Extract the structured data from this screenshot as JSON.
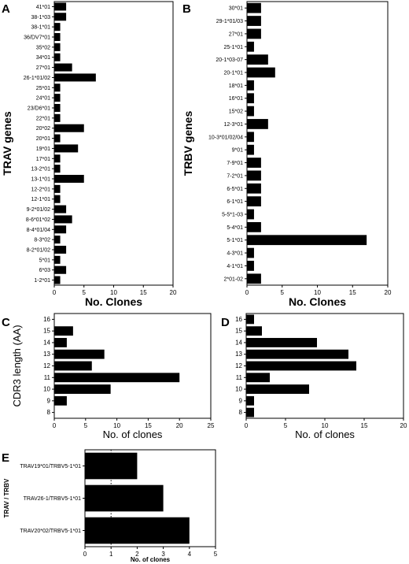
{
  "chart_data": [
    {
      "panel": "A",
      "type": "bar",
      "orientation": "horizontal",
      "xlabel": "No. Clones",
      "ylabel": "TRAV genes",
      "xlim": [
        0,
        20
      ],
      "xticks": [
        0,
        5,
        10,
        15,
        20
      ],
      "grid": false,
      "categories": [
        "41*01",
        "38-1*03",
        "38-1*01",
        "36/DV7*01",
        "35*02",
        "34*01",
        "27*01",
        "26-1*01/02",
        "25*01",
        "24*01",
        "23/D6*01",
        "22*01",
        "20*02",
        "20*01",
        "19*01",
        "17*01",
        "13-2*01",
        "13-1*01",
        "12-2*01",
        "12-1*01",
        "9-2*01/02",
        "8-6*01*02",
        "8-4*01/04",
        "8-3*02",
        "8-2*01/02",
        "5*01",
        "6*03",
        "1-2*01"
      ],
      "values": [
        2,
        2,
        1,
        1,
        1,
        1,
        3,
        7,
        1,
        1,
        1,
        1,
        5,
        1,
        4,
        1,
        1,
        5,
        1,
        1,
        2,
        3,
        2,
        1,
        2,
        1,
        2,
        1
      ]
    },
    {
      "panel": "B",
      "type": "bar",
      "orientation": "horizontal",
      "xlabel": "No. Clones",
      "ylabel": "TRBV genes",
      "xlim": [
        0,
        20
      ],
      "xticks": [
        0,
        5,
        10,
        15,
        20
      ],
      "grid": false,
      "categories": [
        "30*01",
        "29-1*01/03",
        "27*01",
        "25-1*01",
        "20-1*03-07",
        "20-1*01",
        "18*01",
        "16*01",
        "15*02",
        "12-3*01",
        "10-3*01/02/04",
        "9*01",
        "7-9*01",
        "7-2*01",
        "6-5*01",
        "6-1*01",
        "5-5*1-03",
        "5-4*01",
        "5-1*01",
        "4-3*01",
        "4-1*01",
        "2*01-02"
      ],
      "values": [
        2,
        2,
        2,
        1,
        3,
        4,
        1,
        1,
        1,
        3,
        1,
        1,
        2,
        2,
        2,
        2,
        1,
        2,
        17,
        1,
        1,
        2
      ]
    },
    {
      "panel": "C",
      "type": "bar",
      "orientation": "horizontal",
      "xlabel": "No. of clones",
      "ylabel": "CDR3 length (AA)",
      "xlim": [
        0,
        25
      ],
      "xticks": [
        0,
        5,
        10,
        15,
        20,
        25
      ],
      "grid": false,
      "categories": [
        "16",
        "15",
        "14",
        "13",
        "12",
        "11",
        "10",
        "9",
        "8"
      ],
      "values": [
        0,
        3,
        2,
        8,
        6,
        20,
        9,
        2,
        0
      ]
    },
    {
      "panel": "D",
      "type": "bar",
      "orientation": "horizontal",
      "xlabel": "No. of clones",
      "ylabel": "",
      "xlim": [
        0,
        20
      ],
      "xticks": [
        0,
        5,
        10,
        15,
        20
      ],
      "grid": false,
      "categories": [
        "16",
        "15",
        "14",
        "13",
        "12",
        "11",
        "10",
        "9",
        "8"
      ],
      "values": [
        1,
        2,
        9,
        13,
        14,
        3,
        8,
        1,
        1
      ]
    },
    {
      "panel": "E",
      "type": "bar",
      "orientation": "horizontal",
      "xlabel": "No. of clones",
      "ylabel": "TRAV / TRBV",
      "xlim": [
        0,
        5
      ],
      "xticks": [
        0,
        1,
        2,
        3,
        4,
        5
      ],
      "reference_line": 1,
      "grid": false,
      "categories": [
        "TRAV19*01/TRBV5-1*01",
        "TRAV26-1/TRBV5-1*01",
        "TRAV20*02/TRBV5-1*01"
      ],
      "values": [
        2,
        3,
        4
      ]
    }
  ]
}
